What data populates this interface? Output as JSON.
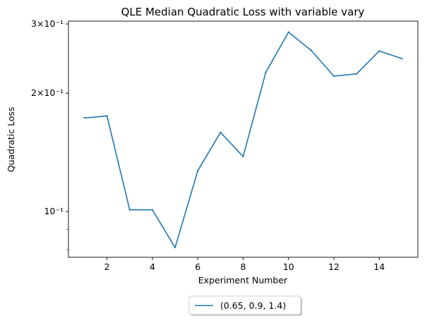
{
  "chart_data": {
    "type": "line",
    "title": "QLE Median Quadratic Loss with variable vary",
    "xlabel": "Experiment Number",
    "ylabel": "Quadratic Loss",
    "yscale": "log",
    "xlim": [
      0.3,
      15.7
    ],
    "ylim": [
      0.0765,
      0.305
    ],
    "x_ticks": [
      2,
      4,
      6,
      8,
      10,
      12,
      14
    ],
    "x_tick_labels": [
      "2",
      "4",
      "6",
      "8",
      "10",
      "12",
      "14"
    ],
    "y_major_ticks": [
      {
        "value": 0.3,
        "label": "3×10⁻¹"
      },
      {
        "value": 0.2,
        "label": "2×10⁻¹"
      },
      {
        "value": 0.1,
        "label": "10⁻¹"
      }
    ],
    "y_minor_ticks": [
      0.09,
      0.08
    ],
    "grid": false,
    "legend_position": "below-center",
    "series": [
      {
        "name": "(0.65, 0.9, 1.4)",
        "color": "#1f77b4",
        "x": [
          1,
          2,
          3,
          4,
          5,
          6,
          7,
          8,
          9,
          10,
          11,
          12,
          13,
          14,
          15
        ],
        "y": [
          0.173,
          0.175,
          0.101,
          0.101,
          0.081,
          0.127,
          0.159,
          0.138,
          0.226,
          0.286,
          0.257,
          0.221,
          0.224,
          0.256,
          0.245
        ]
      }
    ]
  }
}
